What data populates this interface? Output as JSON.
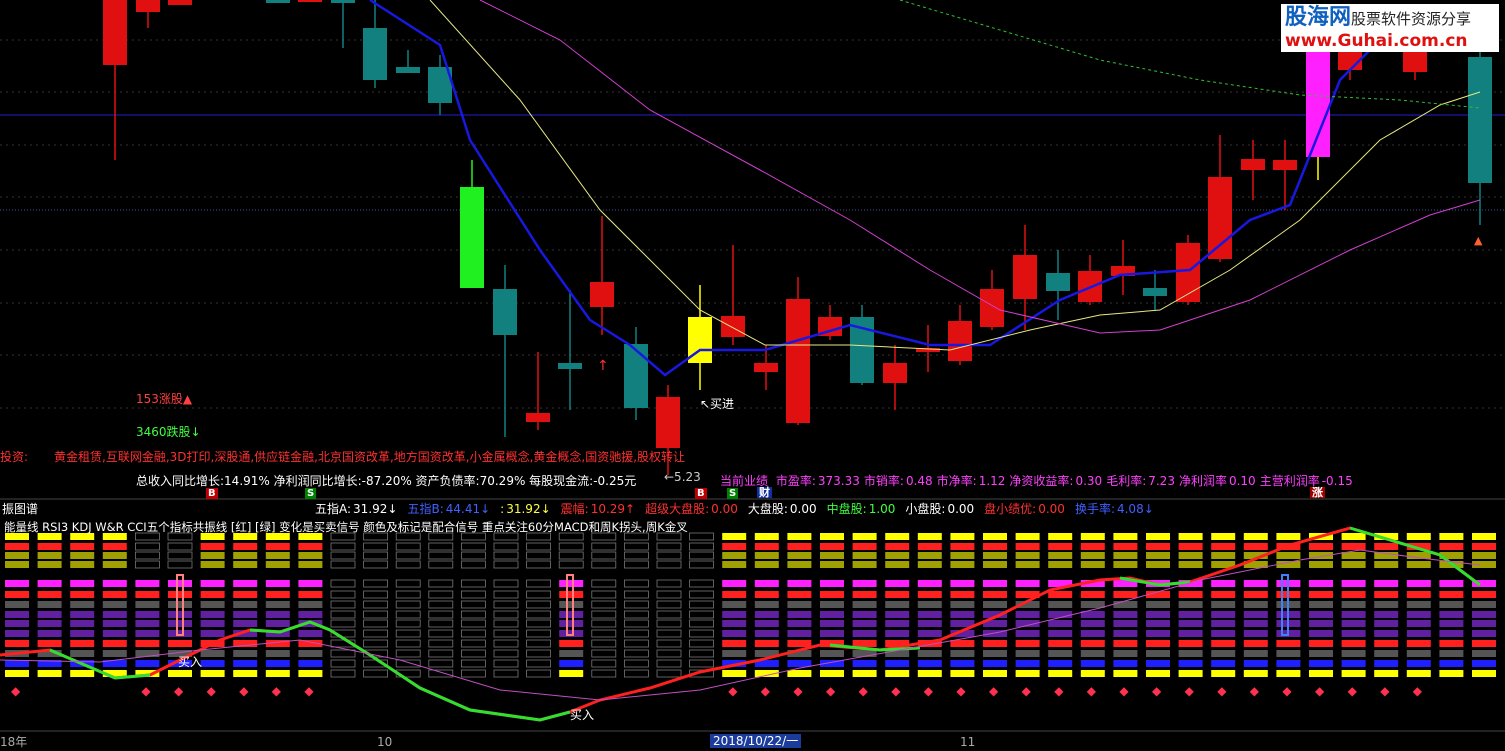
{
  "watermark": {
    "brand": "股海网",
    "slogan": "股票软件资源分享",
    "url": "www.Guhai.com.cn"
  },
  "market": {
    "up": "153涨股▲",
    "down": "3460跌股↓"
  },
  "concepts": {
    "label": "投资:",
    "text": "黄金租赁,互联网金融,3D打印,深股通,供应链金融,北京国资改革,地方国资改革,小金属概念,黄金概念,国资驰援,股权转让"
  },
  "finance": "总收入同比增长:14.91%  净利润同比增长:-87.20%  资产负债率:70.29%  每股现金流:-0.25元",
  "performance": {
    "label": "当前业绩",
    "items": [
      {
        "label": "市盈率:",
        "value": "373.33"
      },
      {
        "label": "市销率:",
        "value": "0.48"
      },
      {
        "label": "市净率:",
        "value": "1.12"
      },
      {
        "label": "净资收益率:",
        "value": "0.30"
      },
      {
        "label": "毛利率:",
        "value": "7.23"
      },
      {
        "label": "净利润率",
        "value": "0.10"
      },
      {
        "label": "主营利润率",
        "value": "-0.15"
      }
    ]
  },
  "annotations": {
    "buy": "↖买进",
    "low": "←5.23"
  },
  "markers": [
    "B",
    "S",
    "B",
    "S",
    "财",
    "涨"
  ],
  "panel": {
    "title": "振图谱",
    "stats": [
      {
        "label": "五指A:",
        "value": "31.92↓"
      },
      {
        "label": "五指B:",
        "value": "44.41↓"
      },
      {
        "label": ":",
        "value": "31.92↓"
      },
      {
        "label": "震幅:",
        "value": "10.29↑"
      },
      {
        "label": "超级大盘股:",
        "value": "0.00"
      },
      {
        "label": "大盘股:",
        "value": "0.00"
      },
      {
        "label": "中盘股:",
        "value": "1.00"
      },
      {
        "label": "小盘股:",
        "value": "0.00"
      },
      {
        "label": "盘小绩优:",
        "value": "0.00"
      },
      {
        "label": "换手率:",
        "value": "4.08↓"
      }
    ],
    "description": "能量线 RSI3 KDJ W&R CCI五个指标共振线 [红] [绿] 变化是买卖信号 颜色及标记是配合信号 重点关注60分MACD和周K拐头,周K金叉",
    "buy_labels": [
      "买入",
      "买入"
    ]
  },
  "axis": [
    "18年",
    "10",
    "2018/10/22/一",
    "11"
  ]
}
